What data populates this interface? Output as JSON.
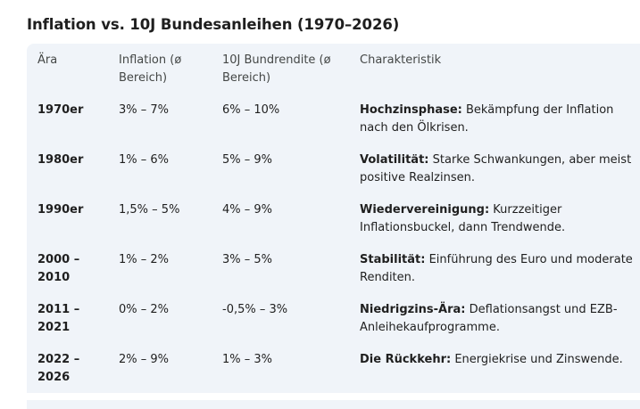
{
  "title": "Inflation vs. 10J Bundesanleihen (1970–2026)",
  "table": {
    "headers": {
      "era": "Ära",
      "inflation_1": "Inflation (ø",
      "inflation_2": "Bereich)",
      "yield_1": "10J Bundrendite (ø",
      "yield_2": "Bereich)",
      "characteristic": "Charakteristik"
    },
    "rows": [
      {
        "era_1": "1970er",
        "era_2": "",
        "inflation": "3% – 7%",
        "yield": "6% – 10%",
        "char_bold": "Hochzinsphase:",
        "char_1": " Bekämpfung der Inflation",
        "char_2": "nach den Ölkrisen."
      },
      {
        "era_1": "1980er",
        "era_2": "",
        "inflation": "1% – 6%",
        "yield": "5% – 9%",
        "char_bold": "Volatilität:",
        "char_1": " Starke Schwankungen, aber meist",
        "char_2": "positive Realzinsen."
      },
      {
        "era_1": "1990er",
        "era_2": "",
        "inflation": "1,5% – 5%",
        "yield": "4% – 9%",
        "char_bold": "Wiedervereinigung:",
        "char_1": " Kurzzeitiger",
        "char_2": "Inflationsbuckel, dann Trendwende."
      },
      {
        "era_1": "2000 –",
        "era_2": "2010",
        "inflation": "1% – 2%",
        "yield": "3% – 5%",
        "char_bold": "Stabilität:",
        "char_1": " Einführung des Euro und moderate",
        "char_2": "Renditen."
      },
      {
        "era_1": "2011 –",
        "era_2": "2021",
        "inflation": "0% – 2%",
        "yield": "-0,5% – 3%",
        "char_bold": "Niedrigzins-Ära:",
        "char_1": " Deflationsangst und EZB-",
        "char_2": "Anleihekaufprogramme."
      },
      {
        "era_1": "2022 –",
        "era_2": "2026",
        "inflation": "2% – 9%",
        "yield": "1% – 3%",
        "char_bold": "Die Rückkehr:",
        "char_1": " Energiekrise und Zinswende.",
        "char_2": ""
      }
    ]
  }
}
